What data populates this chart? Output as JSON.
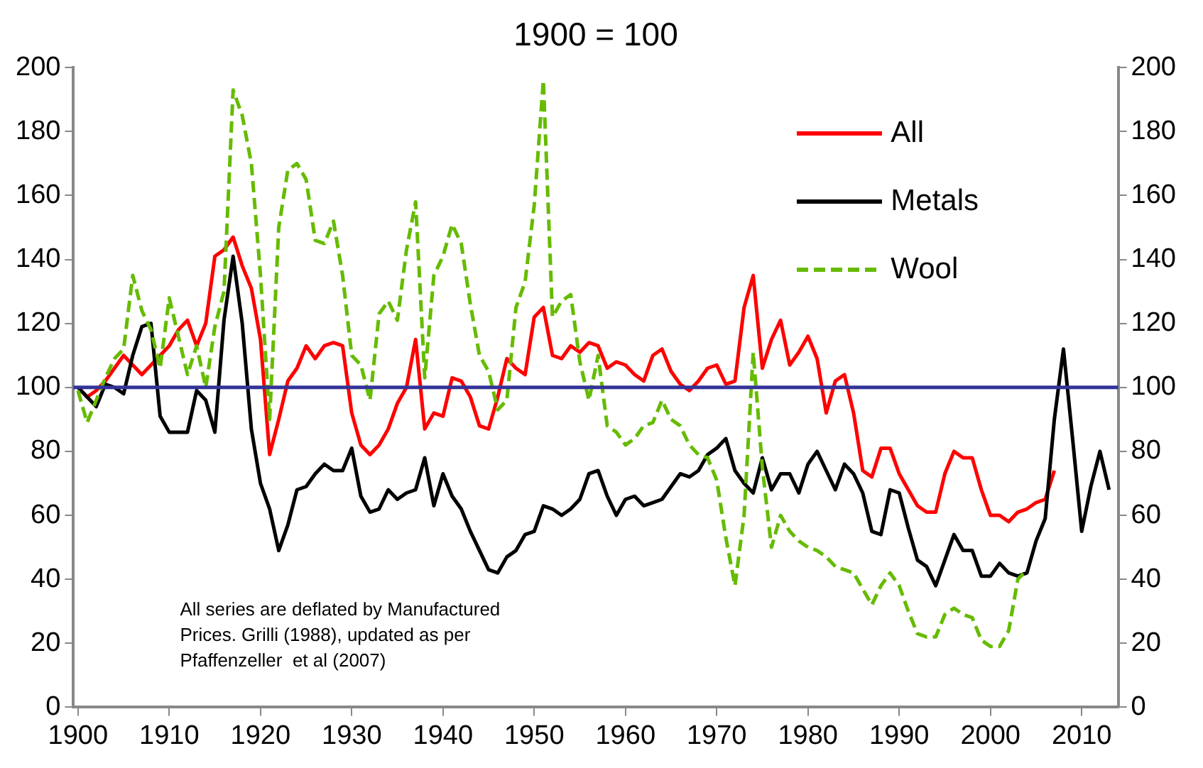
{
  "chart_data": {
    "type": "line",
    "title": "1900 = 100",
    "legend": "top right",
    "marker": "none",
    "grid": false,
    "xlim": [
      1899.5,
      2014
    ],
    "xticks": [
      1900,
      1910,
      1920,
      1930,
      1940,
      1950,
      1960,
      1970,
      1980,
      1990,
      2000,
      2010
    ],
    "ylim": [
      0,
      200
    ],
    "yticks": [
      0,
      20,
      40,
      60,
      80,
      100,
      120,
      140,
      160,
      180,
      200
    ],
    "y2lim": [
      0,
      200
    ],
    "y2ticks": [
      0,
      20,
      40,
      60,
      80,
      100,
      120,
      140,
      160,
      180,
      200
    ],
    "ref_lines": [
      {
        "axis": "y",
        "value": 100,
        "color": "#333399"
      }
    ],
    "annotations": [
      "All series are deflated by Manufactured\nPrices. Grilli (1988), updated as per\nPfaffenzeller  et al (2007)"
    ],
    "series": [
      {
        "name": "All",
        "color": "#ff0000",
        "line_style": "solid",
        "x": [
          1900,
          1901,
          1902,
          1903,
          1904,
          1905,
          1906,
          1907,
          1908,
          1909,
          1910,
          1911,
          1912,
          1913,
          1914,
          1915,
          1916,
          1917,
          1918,
          1919,
          1920,
          1921,
          1922,
          1923,
          1924,
          1925,
          1926,
          1927,
          1928,
          1929,
          1930,
          1931,
          1932,
          1933,
          1934,
          1935,
          1936,
          1937,
          1938,
          1939,
          1940,
          1941,
          1942,
          1943,
          1944,
          1945,
          1946,
          1947,
          1948,
          1949,
          1950,
          1951,
          1952,
          1953,
          1954,
          1955,
          1956,
          1957,
          1958,
          1959,
          1960,
          1961,
          1962,
          1963,
          1964,
          1965,
          1966,
          1967,
          1968,
          1969,
          1970,
          1971,
          1972,
          1973,
          1974,
          1975,
          1976,
          1977,
          1978,
          1979,
          1980,
          1981,
          1982,
          1983,
          1984,
          1985,
          1986,
          1987,
          1988,
          1989,
          1990,
          1991,
          1992,
          1993,
          1994,
          1995,
          1996,
          1997,
          1998,
          1999,
          2000,
          2001,
          2002,
          2003,
          2004,
          2005,
          2006,
          2007
        ],
        "values": [
          100,
          97,
          99,
          102,
          106,
          110,
          107,
          104,
          107,
          110,
          113,
          118,
          121,
          113,
          120,
          141,
          143,
          147,
          138,
          131,
          115,
          79,
          90,
          102,
          106,
          113,
          109,
          113,
          114,
          113,
          92,
          82,
          79,
          82,
          87,
          95,
          100,
          115,
          87,
          92,
          91,
          103,
          102,
          97,
          88,
          87,
          97,
          109,
          106,
          104,
          122,
          125,
          110,
          109,
          113,
          111,
          114,
          113,
          106,
          108,
          107,
          104,
          102,
          110,
          112,
          105,
          101,
          99,
          102,
          106,
          107,
          101,
          102,
          125,
          135,
          106,
          115,
          121,
          107,
          111,
          116,
          109,
          92,
          102,
          104,
          92,
          74,
          72,
          81,
          81,
          73,
          68,
          63,
          61,
          61,
          73,
          80,
          78,
          78,
          68,
          60,
          60,
          58,
          61,
          62,
          64,
          65,
          74
        ]
      },
      {
        "name": "Metals",
        "color": "#000000",
        "line_style": "solid",
        "x": [
          1900,
          1901,
          1902,
          1903,
          1904,
          1905,
          1906,
          1907,
          1908,
          1909,
          1910,
          1911,
          1912,
          1913,
          1914,
          1915,
          1916,
          1917,
          1918,
          1919,
          1920,
          1921,
          1922,
          1923,
          1924,
          1925,
          1926,
          1927,
          1928,
          1929,
          1930,
          1931,
          1932,
          1933,
          1934,
          1935,
          1936,
          1937,
          1938,
          1939,
          1940,
          1941,
          1942,
          1943,
          1944,
          1945,
          1946,
          1947,
          1948,
          1949,
          1950,
          1951,
          1952,
          1953,
          1954,
          1955,
          1956,
          1957,
          1958,
          1959,
          1960,
          1961,
          1962,
          1963,
          1964,
          1965,
          1966,
          1967,
          1968,
          1969,
          1970,
          1971,
          1972,
          1973,
          1974,
          1975,
          1976,
          1977,
          1978,
          1979,
          1980,
          1981,
          1982,
          1983,
          1984,
          1985,
          1986,
          1987,
          1988,
          1989,
          1990,
          1991,
          1992,
          1993,
          1994,
          1995,
          1996,
          1997,
          1998,
          1999,
          2000,
          2001,
          2002,
          2003,
          2004,
          2005,
          2006,
          2007,
          2008,
          2009,
          2010,
          2011,
          2012,
          2013
        ],
        "values": [
          100,
          97,
          94,
          101,
          100,
          98,
          110,
          119,
          120,
          91,
          86,
          86,
          86,
          99,
          96,
          86,
          121,
          141,
          120,
          87,
          70,
          62,
          49,
          57,
          68,
          69,
          73,
          76,
          74,
          74,
          81,
          66,
          61,
          62,
          68,
          65,
          67,
          68,
          78,
          63,
          73,
          66,
          62,
          55,
          49,
          43,
          42,
          47,
          49,
          54,
          55,
          63,
          62,
          60,
          62,
          65,
          73,
          74,
          66,
          60,
          65,
          66,
          63,
          64,
          65,
          69,
          73,
          72,
          74,
          79,
          81,
          84,
          74,
          70,
          67,
          78,
          68,
          73,
          73,
          67,
          76,
          80,
          74,
          68,
          76,
          73,
          67,
          55,
          54,
          68,
          67,
          56,
          46,
          44,
          38,
          46,
          54,
          49,
          49,
          41,
          41,
          45,
          42,
          41,
          42,
          52,
          59,
          90,
          112,
          84,
          55,
          69,
          80,
          68
        ]
      },
      {
        "name": "Wool",
        "color": "#66bb00",
        "line_style": "dashed",
        "x": [
          1900,
          1901,
          1902,
          1903,
          1904,
          1905,
          1906,
          1907,
          1908,
          1909,
          1910,
          1911,
          1912,
          1913,
          1914,
          1915,
          1916,
          1917,
          1918,
          1919,
          1920,
          1921,
          1922,
          1923,
          1924,
          1925,
          1926,
          1927,
          1928,
          1929,
          1930,
          1931,
          1932,
          1933,
          1934,
          1935,
          1936,
          1937,
          1938,
          1939,
          1940,
          1941,
          1942,
          1943,
          1944,
          1945,
          1946,
          1947,
          1948,
          1949,
          1950,
          1951,
          1952,
          1953,
          1954,
          1955,
          1956,
          1957,
          1958,
          1959,
          1960,
          1961,
          1962,
          1963,
          1964,
          1965,
          1966,
          1967,
          1968,
          1969,
          1970,
          1971,
          1972,
          1973,
          1974,
          1975,
          1976,
          1977,
          1978,
          1979,
          1980,
          1981,
          1982,
          1983,
          1984,
          1985,
          1986,
          1987,
          1988,
          1989,
          1990,
          1991,
          1992,
          1993,
          1994,
          1995,
          1996,
          1997,
          1998,
          1999,
          2000,
          2001,
          2002,
          2003,
          2004
        ],
        "values": [
          99,
          89,
          96,
          103,
          109,
          112,
          135,
          124,
          118,
          106,
          128,
          116,
          104,
          113,
          100,
          119,
          130,
          193,
          185,
          170,
          135,
          90,
          150,
          168,
          170,
          165,
          146,
          145,
          152,
          135,
          110,
          107,
          96,
          123,
          127,
          121,
          143,
          158,
          103,
          135,
          141,
          151,
          145,
          126,
          110,
          105,
          93,
          96,
          125,
          133,
          157,
          196,
          122,
          127,
          129,
          108,
          96,
          110,
          88,
          86,
          82,
          84,
          88,
          89,
          96,
          90,
          88,
          82,
          79,
          78,
          71,
          53,
          38,
          60,
          111,
          75,
          50,
          60,
          55,
          52,
          50,
          49,
          47,
          44,
          43,
          42,
          37,
          32,
          38,
          42,
          38,
          30,
          23,
          22,
          22,
          29,
          31,
          29,
          28,
          21,
          19,
          19,
          24,
          40,
          43
        ]
      }
    ]
  }
}
